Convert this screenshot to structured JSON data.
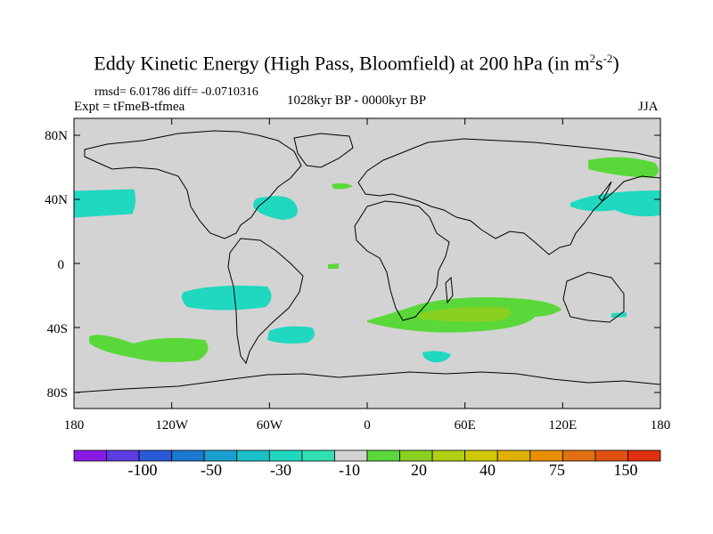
{
  "header": {
    "title_main": "Eddy Kinetic Energy (High Pass, Bloomfield) at 200 hPa (in m",
    "title_sup1": "2",
    "title_s": "s",
    "title_sup2": "-2",
    "title_close": ")",
    "stats": "rmsd= 6.01786 diff= -0.0710316",
    "expt": "Expt = tFmeB-tfmea",
    "period": "1028kyr BP - 0000kyr BP",
    "season": "JJA"
  },
  "map": {
    "projection": "cylindrical equidistant",
    "background_color": "#d3d3d3",
    "lat_ticks": [
      "80N",
      "40N",
      "0",
      "40S",
      "80S"
    ],
    "lon_ticks": [
      "180",
      "120W",
      "60W",
      "0",
      "60E",
      "120E",
      "180"
    ]
  },
  "colorbar": {
    "colors": [
      "#8a1ae6",
      "#5a3ce0",
      "#2a5ad8",
      "#1a78d0",
      "#1aa0d0",
      "#1ac0c8",
      "#20d8c0",
      "#30e0b0",
      "#d3d3d3",
      "#5ad83a",
      "#8ad020",
      "#b0d010",
      "#d0c800",
      "#e0b000",
      "#e89000",
      "#e07010",
      "#e05010",
      "#e03010"
    ],
    "labels": [
      "-100",
      "-50",
      "-30",
      "-10",
      "20",
      "40",
      "75",
      "150"
    ]
  }
}
